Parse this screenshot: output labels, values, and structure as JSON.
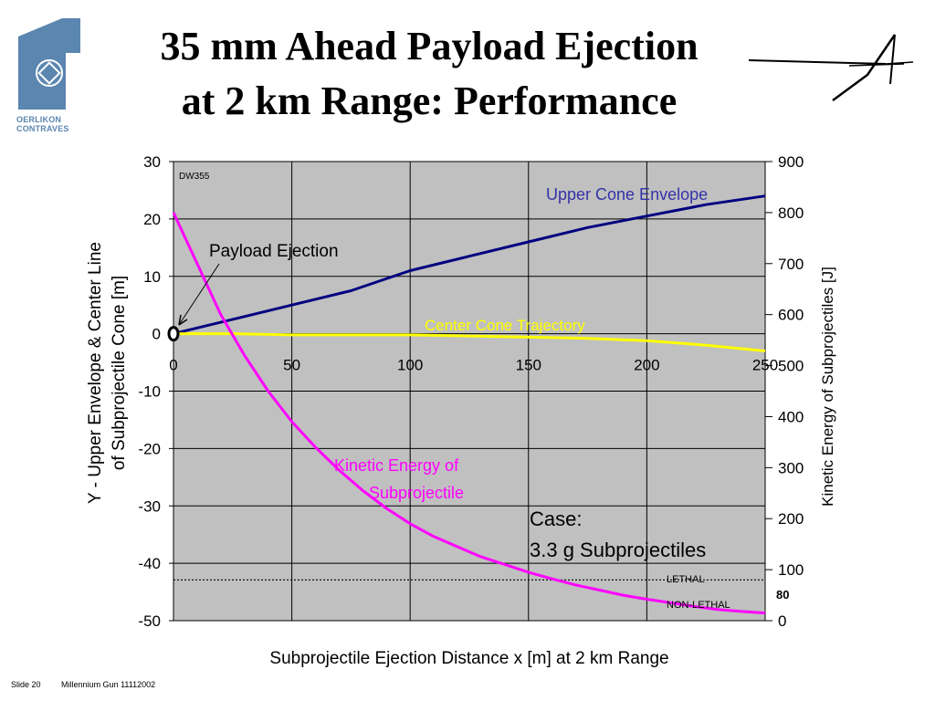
{
  "header": {
    "title_line1": "35 mm Ahead Payload Ejection",
    "title_line2": "at 2 km Range: Performance",
    "logo_line1": "OERLIKON",
    "logo_line2": "CONTRAVES"
  },
  "footer": {
    "slide": "Slide 20",
    "label": "Millennium Gun 11112002"
  },
  "colors": {
    "plot_bg": "#c0c0c0",
    "upper_cone": "#000080",
    "center_cone": "#ffff00",
    "kinetic_energy": "#ff00ff",
    "logo_blue": "#5b86b0"
  },
  "chart_data": {
    "type": "line",
    "xlabel": "Subprojectile Ejection Distance x [m] at 2 km Range",
    "ylabel_line1": "Y - Upper Envelope & Center Line",
    "ylabel_line2": "of Subprojectile Cone [m]",
    "y2label": "Kinetic Energy of Subprojectiles [J]",
    "xlim": [
      0,
      250
    ],
    "ylim": [
      -50,
      30
    ],
    "y2lim": [
      0,
      900
    ],
    "x_ticks": [
      "0",
      "50",
      "100",
      "150",
      "200",
      "250"
    ],
    "y_ticks": [
      "30",
      "20",
      "10",
      "0",
      "-10",
      "-20",
      "-30",
      "-40",
      "-50"
    ],
    "y2_ticks": [
      "900",
      "800",
      "700",
      "600",
      "500",
      "400",
      "300",
      "200",
      "100",
      "0"
    ],
    "grid": true,
    "series": [
      {
        "name": "Upper Cone Envelope",
        "axis": "left",
        "x": [
          0,
          25,
          50,
          75,
          100,
          125,
          150,
          175,
          200,
          225,
          250
        ],
        "y": [
          0,
          2.5,
          5,
          7.5,
          11,
          13.5,
          16,
          18.5,
          20.5,
          22.5,
          24
        ]
      },
      {
        "name": "Center Cone Trajectory",
        "axis": "left",
        "x": [
          0,
          25,
          50,
          75,
          100,
          125,
          150,
          175,
          200,
          225,
          250
        ],
        "y": [
          0,
          0,
          -0.2,
          -0.2,
          -0.2,
          -0.4,
          -0.6,
          -0.8,
          -1.2,
          -2,
          -3
        ]
      },
      {
        "name": "Kinetic Energy of Subprojectile",
        "axis": "right",
        "x": [
          0,
          10,
          20,
          30,
          40,
          50,
          60,
          70,
          80,
          90,
          100,
          110,
          120,
          130,
          140,
          150,
          160,
          170,
          180,
          190,
          200,
          210,
          220,
          230,
          240,
          250
        ],
        "y": [
          800,
          700,
          600,
          520,
          450,
          390,
          340,
          295,
          255,
          220,
          190,
          165,
          145,
          125,
          110,
          95,
          82,
          70,
          60,
          50,
          42,
          35,
          28,
          22,
          18,
          15
        ]
      }
    ],
    "lethal_threshold": {
      "value": 80,
      "label": "80",
      "upper_label": "LETHAL",
      "lower_label": "NON-LETHAL"
    },
    "annotations": {
      "dw": "DW355",
      "upper_cone": "Upper Cone Envelope",
      "center_cone": "Center Cone Trajectory",
      "ke_line1": "Kinetic Energy of",
      "ke_line2": "Subprojectile",
      "payload": "Payload Ejection",
      "case_line1": "Case:",
      "case_line2": "3.3 g Subprojectiles"
    }
  }
}
